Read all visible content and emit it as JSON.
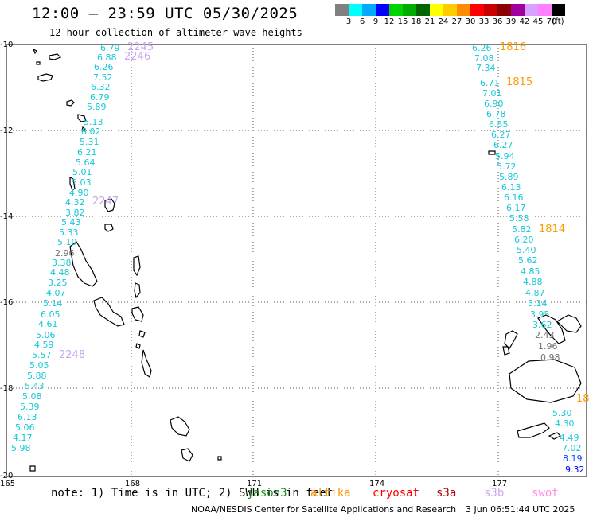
{
  "header": {
    "title": "12:00 – 23:59 UTC 05/30/2025",
    "subtitle": "12 hour collection of altimeter wave heights"
  },
  "scale": {
    "unit_label": "(ft)",
    "items": [
      {
        "label": "3",
        "color": "#808080"
      },
      {
        "label": "6",
        "color": "#00ffff"
      },
      {
        "label": "9",
        "color": "#00aaff"
      },
      {
        "label": "12",
        "color": "#0000ff"
      },
      {
        "label": "15",
        "color": "#00d400"
      },
      {
        "label": "18",
        "color": "#00aa00"
      },
      {
        "label": "21",
        "color": "#006400"
      },
      {
        "label": "24",
        "color": "#ffff00"
      },
      {
        "label": "27",
        "color": "#ffcc00"
      },
      {
        "label": "30",
        "color": "#ff8c00"
      },
      {
        "label": "33",
        "color": "#ff0000"
      },
      {
        "label": "36",
        "color": "#c80000"
      },
      {
        "label": "39",
        "color": "#8b0000"
      },
      {
        "label": "42",
        "color": "#a000a0"
      },
      {
        "label": "45",
        "color": "#d8a0ff"
      },
      {
        "label": "70",
        "color": "#ff80ff"
      },
      {
        "label": "",
        "color": "#000000"
      }
    ]
  },
  "axes": {
    "lat_labels": [
      "-10",
      "-12",
      "-14",
      "-16",
      "-18",
      "-20"
    ],
    "lon_labels": [
      "165",
      "168",
      "171",
      "174",
      "177"
    ]
  },
  "track_left": {
    "values": [
      "6.79",
      "6.88",
      "6.26",
      "7.52",
      "6.32",
      "6.79",
      "5.89",
      "5.13",
      "6.02",
      "5.31",
      "6.21",
      "5.64",
      "5.01",
      "5.03",
      "4.90",
      "4.32",
      "3.82",
      "5.43",
      "5.33",
      "5.10",
      "2.96",
      "3.38",
      "4.48",
      "3.25",
      "4.07",
      "5.14",
      "6.05",
      "4.61",
      "5.06",
      "4.59",
      "5.57",
      "5.05",
      "5.88",
      "5.43",
      "5.08",
      "5.39",
      "6.13",
      "5.06",
      "4.17",
      "5.98"
    ],
    "time_tags": [
      "2245",
      "2246",
      "2247",
      "2248"
    ]
  },
  "track_right": {
    "values": [
      "6.26",
      "7.08",
      "7.34",
      "6.71",
      "7.01",
      "6.90",
      "6.78",
      "6.55",
      "6.27",
      "6.27",
      "5.94",
      "5.72",
      "5.89",
      "6.13",
      "6.16",
      "6.17",
      "5.58",
      "5.82",
      "6.20",
      "5.40",
      "5.62",
      "4.85",
      "4.88",
      "4.87",
      "5.14",
      "3.95",
      "3.62",
      "2.43",
      "1.96",
      "0.98",
      "5.30",
      "4.30",
      "4.49",
      "7.02",
      "8.19",
      "9.32"
    ],
    "time_tags": [
      "1816",
      "1815",
      "1814",
      "18"
    ]
  },
  "footer": {
    "note": "note: 1) Time is in UTC; 2) SWH is in feet",
    "satellites": [
      {
        "name": "jason3",
        "color": "#1a8f1a"
      },
      {
        "name": "altika",
        "color": "#ff9900"
      },
      {
        "name": "cryosat",
        "color": "#ff0000"
      },
      {
        "name": "s3a",
        "color": "#b00000"
      },
      {
        "name": "s3b",
        "color": "#c8a8f0"
      },
      {
        "name": "swot",
        "color": "#ff90e0"
      }
    ],
    "credit": "NOAA/NESDIS Center for Satellite Applications and Research",
    "timestamp": "3 Jun 06:51:44 UTC 2025"
  }
}
